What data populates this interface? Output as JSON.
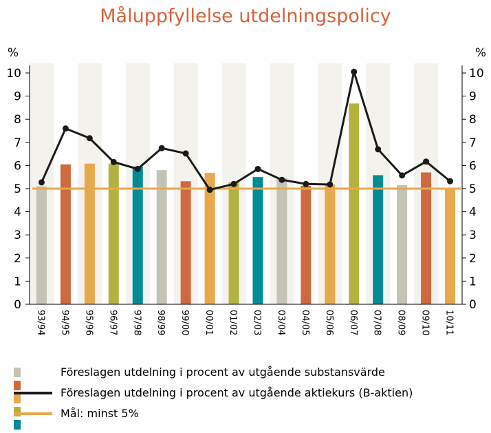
{
  "chart_data": {
    "type": "bar",
    "title": "Måluppfyllelse utdelningspolicy",
    "left_axis_unit": "%",
    "right_axis_unit": "%",
    "ylim": [
      0,
      10
    ],
    "yticks": [
      0,
      1,
      2,
      3,
      4,
      5,
      6,
      7,
      8,
      9,
      10
    ],
    "grid": "vertical bands",
    "categories": [
      "93/94",
      "94/95",
      "95/96",
      "96/97",
      "97/98",
      "98/99",
      "99/00",
      "00/01",
      "01/02",
      "02/03",
      "03/04",
      "04/05",
      "05/06",
      "06/07",
      "07/08",
      "08/09",
      "09/10",
      "10/11"
    ],
    "bar_values": [
      5.1,
      6.05,
      6.08,
      6.08,
      5.95,
      5.8,
      5.32,
      5.68,
      5.27,
      5.5,
      5.45,
      5.12,
      5.18,
      8.68,
      5.58,
      5.15,
      5.7,
      5.0
    ],
    "bar_colors": [
      "#c5c3b6",
      "#cf6a3e",
      "#e8a84c",
      "#b3b23e",
      "#008c95",
      "#c5c3b6",
      "#cf6a3e",
      "#e8a84c",
      "#b3b23e",
      "#008c95",
      "#c5c3b6",
      "#cf6a3e",
      "#e8a84c",
      "#b3b23e",
      "#008c95",
      "#c5c3b6",
      "#cf6a3e",
      "#e8a84c"
    ],
    "line_values": [
      5.27,
      7.6,
      7.18,
      6.15,
      5.85,
      6.75,
      6.52,
      4.95,
      5.2,
      5.85,
      5.38,
      5.2,
      5.18,
      10.05,
      6.7,
      5.57,
      6.17,
      5.32
    ],
    "line_color": "#1a1a1a",
    "target_value": 5,
    "target_color": "#e8a84c",
    "band_color": "#f3f2ec",
    "legend_placement": "bottom",
    "legend": [
      {
        "label": "Föreslagen utdelning i procent av utgående substansvärde",
        "kind": "boxes",
        "colors": [
          "#c5c3b6",
          "#cf6a3e",
          "#e8a84c",
          "#b3b23e",
          "#008c95"
        ]
      },
      {
        "label": "Föreslagen utdelning i procent av utgående aktiekurs (B-aktien)",
        "kind": "line",
        "color": "#1a1a1a"
      },
      {
        "label": "Mål: minst 5%",
        "kind": "line",
        "color": "#e8a84c"
      }
    ]
  }
}
